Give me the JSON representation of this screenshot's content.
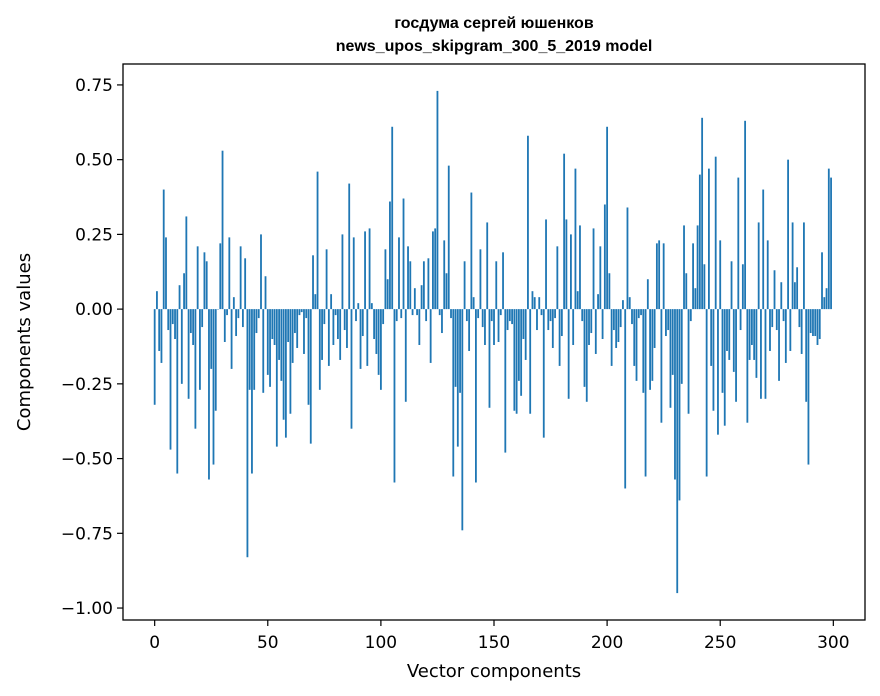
{
  "chart_data": {
    "type": "bar",
    "title": "госдума сергей юшенков",
    "subtitle": "news_upos_skipgram_300_5_2019 model",
    "xlabel": "Vector components",
    "ylabel": "Components values",
    "xlim": [
      -14,
      314
    ],
    "ylim": [
      -1.04,
      0.82
    ],
    "x_ticks": [
      0,
      50,
      100,
      150,
      200,
      250,
      300
    ],
    "x_tick_labels": [
      "0",
      "50",
      "100",
      "150",
      "200",
      "250",
      "300"
    ],
    "y_ticks": [
      0.75,
      0.5,
      0.25,
      0.0,
      -0.25,
      -0.5,
      -0.75,
      -1.0
    ],
    "y_tick_labels": [
      "0.75",
      "0.50",
      "0.25",
      "0.00",
      "−0.25",
      "−0.50",
      "−0.75",
      "−1.00"
    ],
    "bar_color": "#1f77b4",
    "grid": false,
    "values": [
      -0.32,
      0.06,
      -0.14,
      -0.18,
      0.4,
      0.24,
      -0.07,
      -0.47,
      -0.05,
      -0.1,
      -0.55,
      0.08,
      -0.25,
      0.12,
      0.31,
      -0.3,
      -0.08,
      -0.12,
      -0.4,
      0.21,
      -0.27,
      -0.06,
      0.19,
      0.16,
      -0.57,
      -0.2,
      -0.52,
      -0.34,
      0.0,
      0.22,
      0.53,
      -0.11,
      -0.02,
      0.24,
      -0.2,
      0.04,
      -0.09,
      -0.03,
      0.21,
      -0.06,
      0.17,
      -0.83,
      -0.27,
      -0.55,
      -0.27,
      -0.08,
      -0.03,
      0.25,
      -0.28,
      0.11,
      -0.22,
      -0.26,
      -0.1,
      -0.12,
      -0.46,
      -0.17,
      -0.24,
      -0.37,
      -0.43,
      -0.11,
      -0.35,
      -0.18,
      -0.08,
      -0.13,
      -0.02,
      -0.01,
      -0.15,
      -0.03,
      -0.32,
      -0.45,
      0.18,
      0.05,
      0.46,
      -0.27,
      -0.17,
      -0.05,
      0.2,
      -0.19,
      0.05,
      -0.12,
      -0.02,
      -0.1,
      -0.17,
      0.25,
      -0.07,
      -0.13,
      0.42,
      -0.4,
      0.24,
      -0.04,
      0.02,
      -0.2,
      -0.09,
      0.26,
      -0.19,
      0.27,
      0.02,
      -0.1,
      -0.15,
      -0.22,
      -0.27,
      -0.05,
      0.2,
      0.1,
      0.36,
      0.61,
      -0.58,
      -0.04,
      0.24,
      -0.03,
      0.37,
      -0.31,
      0.21,
      0.16,
      -0.02,
      0.07,
      -0.02,
      -0.12,
      0.08,
      0.16,
      -0.04,
      0.17,
      -0.18,
      0.26,
      0.27,
      0.73,
      -0.02,
      -0.08,
      0.23,
      0.12,
      0.48,
      -0.03,
      -0.56,
      -0.26,
      -0.46,
      -0.28,
      -0.74,
      0.16,
      -0.04,
      -0.14,
      0.39,
      0.04,
      -0.58,
      -0.03,
      0.2,
      -0.06,
      -0.12,
      0.29,
      -0.33,
      -0.04,
      -0.12,
      0.16,
      -0.11,
      -0.02,
      0.19,
      -0.48,
      -0.07,
      -0.04,
      -0.05,
      -0.34,
      -0.35,
      -0.24,
      -0.29,
      -0.1,
      -0.17,
      0.58,
      -0.35,
      0.06,
      0.04,
      -0.07,
      0.04,
      -0.02,
      -0.43,
      0.3,
      -0.07,
      -0.04,
      -0.13,
      -0.03,
      0.21,
      -0.19,
      -0.09,
      0.52,
      0.3,
      -0.3,
      0.25,
      -0.12,
      0.47,
      0.06,
      0.28,
      -0.04,
      -0.26,
      -0.31,
      -0.12,
      -0.08,
      0.27,
      -0.15,
      0.05,
      0.21,
      -0.1,
      0.35,
      0.61,
      0.12,
      -0.19,
      -0.07,
      -0.13,
      -0.11,
      -0.06,
      0.03,
      -0.6,
      0.34,
      0.04,
      -0.05,
      -0.19,
      -0.24,
      -0.03,
      -0.02,
      -0.28,
      -0.56,
      0.1,
      -0.27,
      -0.24,
      -0.13,
      0.22,
      0.23,
      -0.38,
      0.22,
      -0.09,
      -0.07,
      -0.33,
      -0.22,
      -0.57,
      -0.95,
      -0.64,
      -0.25,
      0.28,
      0.12,
      -0.35,
      -0.04,
      0.22,
      0.07,
      0.28,
      0.45,
      0.64,
      0.15,
      -0.56,
      0.47,
      -0.19,
      -0.34,
      0.51,
      -0.42,
      0.23,
      -0.28,
      -0.39,
      -0.14,
      -0.17,
      0.16,
      -0.21,
      -0.31,
      0.44,
      -0.07,
      0.15,
      0.63,
      -0.38,
      -0.17,
      -0.12,
      -0.17,
      -0.23,
      0.29,
      -0.3,
      0.4,
      -0.3,
      0.23,
      -0.14,
      -0.06,
      0.13,
      -0.07,
      -0.24,
      0.09,
      -0.04,
      -0.18,
      0.5,
      -0.14,
      0.29,
      0.09,
      0.14,
      -0.06,
      -0.15,
      0.29,
      -0.31,
      -0.52,
      -0.08,
      -0.09,
      -0.09,
      -0.12,
      -0.1,
      0.19,
      0.04,
      0.07,
      0.47,
      0.44
    ]
  }
}
